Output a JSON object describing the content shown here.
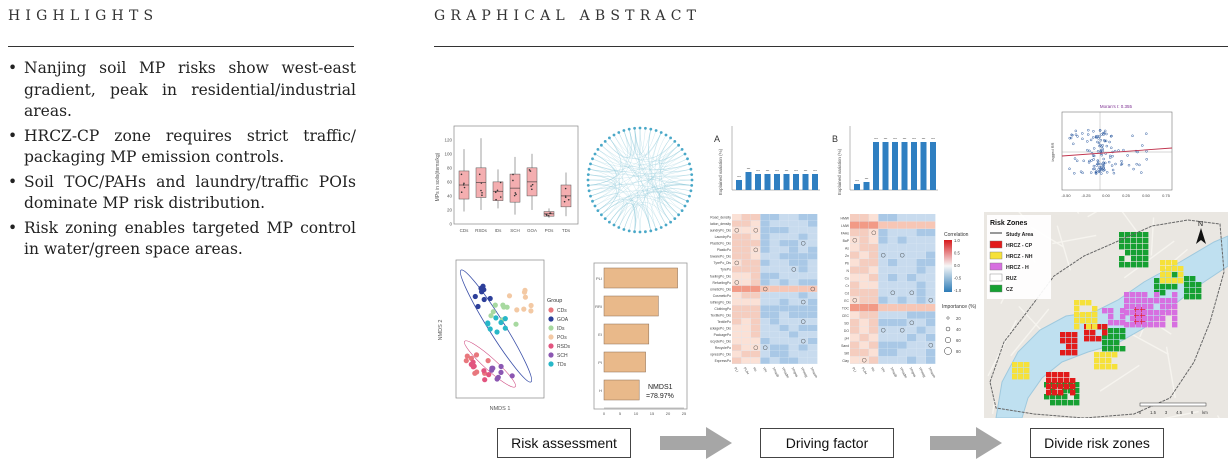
{
  "highlights": {
    "title": "HIGHLIGHTS",
    "items": [
      "Nanjing soil MP risks show west-east gradient, peak in residential/industrial areas.",
      "HRCZ-CP zone requires strict traffic/ packaging MP emission controls.",
      "Soil TOC/PAHs and laundry/traffic POIs dominate MP risk distribution.",
      "Risk zoning enables targeted MP control in water/green space areas."
    ]
  },
  "graphical_abstract": {
    "title": "GRAPHICAL ABSTRACT",
    "boxplot": {
      "ylabel": "MPs in soils(items/kg)",
      "categories": [
        "CDs",
        "RSDs",
        "IDs",
        "SCH",
        "GOA",
        "POs",
        "TDs"
      ],
      "yticks": [
        "0",
        "20",
        "40",
        "60",
        "80",
        "100",
        "120"
      ]
    },
    "nmds": {
      "xlabel": "NMDS 1",
      "ylabel": "NMDS 2",
      "legend_title": "Group",
      "groups": [
        {
          "name": "CDs",
          "color": "#e8777d"
        },
        {
          "name": "GOA",
          "color": "#2d3f9a"
        },
        {
          "name": "IDs",
          "color": "#a7d9a0"
        },
        {
          "name": "POs",
          "color": "#f3c9a4"
        },
        {
          "name": "RSDs",
          "color": "#e2547f"
        },
        {
          "name": "SCH",
          "color": "#8b57b2"
        },
        {
          "name": "TDs",
          "color": "#27b7c8"
        }
      ]
    },
    "bar_panel": {
      "categories": [
        "PLI",
        "RRI",
        "EI",
        "PI",
        "H"
      ],
      "values": [
        23,
        17,
        14,
        13,
        11
      ],
      "xticks": [
        "0",
        "5",
        "10",
        "15",
        "20",
        "25"
      ],
      "annotation_line1": "NMDS1",
      "annotation_line2": "=78.97%",
      "color": "#e9b98a"
    },
    "panel_a_label": "A",
    "panel_b_label": "B",
    "explained_ylabel": "Explained variation (%)",
    "heatmap_a_rows": [
      "Road_density",
      "Population_density",
      "LaundryPo_Dis",
      "LaundryPo",
      "PlasticPo_Dis",
      "PlasticPo",
      "AutowarePo_Dis",
      "TyrePo_Dis",
      "TyrePo",
      "RefuelingPo_Dis",
      "RefuelingPo",
      "CosmeticPo_Dis",
      "CosmeticPo",
      "ClothingPo_Dis",
      "ClothingPo",
      "TextilePo_Dis",
      "TextilePo",
      "PackagePo_Dis",
      "PackagePo",
      "RecyclePo_Dis",
      "RecyclePo",
      "ExpressPo_Dis",
      "ExpressPo"
    ],
    "heatmap_b_rows": [
      "HMW",
      "LMW",
      "FAHs",
      "BaP",
      "As",
      "Zn",
      "Pb",
      "N",
      "Cu",
      "Cr",
      "Cd",
      "EC",
      "TOC",
      "CEC",
      "SD",
      "DO",
      "pH",
      "Sand",
      "Silt",
      "Clay"
    ],
    "heatmap_cols": [
      "PLI",
      "PLIH",
      "Hs",
      "TPI",
      "TPIsub",
      "TPIadm",
      "TPIpos",
      "TPIneg",
      "TPIsum"
    ],
    "colorbar_title": "Correlation",
    "colorbar_ticks": [
      "1.0",
      "0.5",
      "0.0",
      "-0.5",
      "-1.0"
    ],
    "importance_title": "Importance (%)",
    "importance_levels": [
      "20",
      "40",
      "60",
      "80"
    ],
    "scatter_label": "Moran's I: 0.355",
    "scatter_ylabel": "lagged RR",
    "scatter_xticks": [
      "-0.50",
      "-0.25",
      "0.00",
      "0.25",
      "0.50",
      "0.75"
    ],
    "map": {
      "legend_title": "Risk Zones",
      "legend_items": [
        {
          "label": "Study Area",
          "color": "#555555",
          "kind": "line"
        },
        {
          "label": "HRCZ - CP",
          "color": "#e21b1b",
          "kind": "box"
        },
        {
          "label": "HRCZ - NH",
          "color": "#f6e13a",
          "kind": "box"
        },
        {
          "label": "HRCZ - H",
          "color": "#d76fe0",
          "kind": "box"
        },
        {
          "label": "RUZ",
          "color": "#ffffff",
          "kind": "box"
        },
        {
          "label": "CZ",
          "color": "#16a032",
          "kind": "box"
        }
      ],
      "north": "N",
      "scale_ticks": [
        "0",
        "1.5",
        "3",
        "4.5",
        "6",
        "km"
      ]
    },
    "steps": [
      "Risk assessment",
      "Driving factor",
      "Divide risk zones"
    ]
  }
}
